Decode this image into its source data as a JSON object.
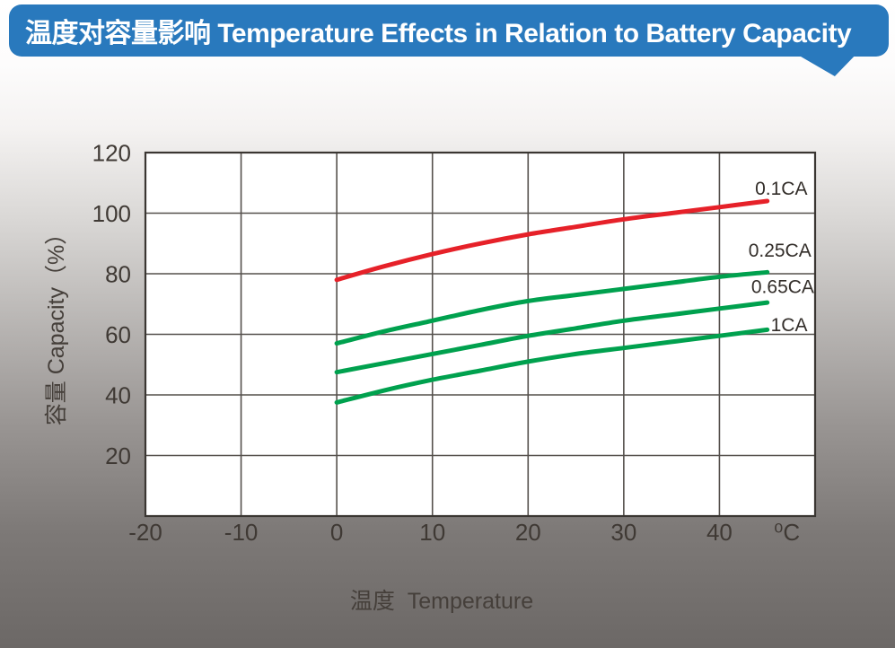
{
  "banner": {
    "title": "温度对容量影响 Temperature Effects in Relation to Battery Capacity",
    "bg_color": "#2979bd",
    "text_color": "#ffffff"
  },
  "chart_data": {
    "type": "line",
    "title": "温度对容量影响 Temperature Effects in Relation to Battery Capacity",
    "xlabel": "温度  Temperature",
    "ylabel": "容量 Capacity（%）",
    "x_unit": "⁰C",
    "xlim": [
      -20,
      50
    ],
    "ylim": [
      0,
      120
    ],
    "x_ticks": [
      -20,
      -10,
      0,
      10,
      20,
      30,
      40
    ],
    "y_ticks": [
      20,
      40,
      60,
      80,
      100,
      120
    ],
    "grid": true,
    "legend_position": "labels-right-of-curves",
    "series": [
      {
        "name": "0.1CA",
        "color": "#e62129",
        "label_anchor": {
          "x": 49.2,
          "y": 108
        },
        "points": [
          [
            0,
            78
          ],
          [
            5,
            82.5
          ],
          [
            10,
            86.5
          ],
          [
            15,
            90
          ],
          [
            20,
            93
          ],
          [
            25,
            95.5
          ],
          [
            30,
            98
          ],
          [
            35,
            100
          ],
          [
            40,
            102
          ],
          [
            45,
            104
          ]
        ]
      },
      {
        "name": "0.25CA",
        "color": "#00a14e",
        "label_anchor": {
          "x": 49.6,
          "y": 87.5
        },
        "points": [
          [
            0,
            57
          ],
          [
            5,
            61
          ],
          [
            10,
            64.5
          ],
          [
            15,
            68
          ],
          [
            20,
            71
          ],
          [
            25,
            73
          ],
          [
            30,
            75
          ],
          [
            35,
            77
          ],
          [
            40,
            79
          ],
          [
            45,
            80.5
          ]
        ]
      },
      {
        "name": "0.65CA",
        "color": "#00a14e",
        "label_anchor": {
          "x": 49.9,
          "y": 75.5
        },
        "points": [
          [
            0,
            47.5
          ],
          [
            5,
            50.5
          ],
          [
            10,
            53.5
          ],
          [
            15,
            56.5
          ],
          [
            20,
            59.5
          ],
          [
            25,
            62
          ],
          [
            30,
            64.5
          ],
          [
            35,
            66.5
          ],
          [
            40,
            68.5
          ],
          [
            45,
            70.5
          ]
        ]
      },
      {
        "name": "1CA",
        "color": "#00a14e",
        "label_anchor": {
          "x": 49.2,
          "y": 63
        },
        "points": [
          [
            0,
            37.5
          ],
          [
            5,
            41.5
          ],
          [
            10,
            45
          ],
          [
            15,
            48
          ],
          [
            20,
            51
          ],
          [
            25,
            53.5
          ],
          [
            30,
            55.5
          ],
          [
            35,
            57.5
          ],
          [
            40,
            59.5
          ],
          [
            45,
            61.5
          ]
        ]
      }
    ],
    "style": {
      "grid_color": "#55504c",
      "border_color": "#3a3632",
      "plot_bg": "#ffffff",
      "tick_text_color": "#3f3934",
      "curve_width": 5
    }
  }
}
